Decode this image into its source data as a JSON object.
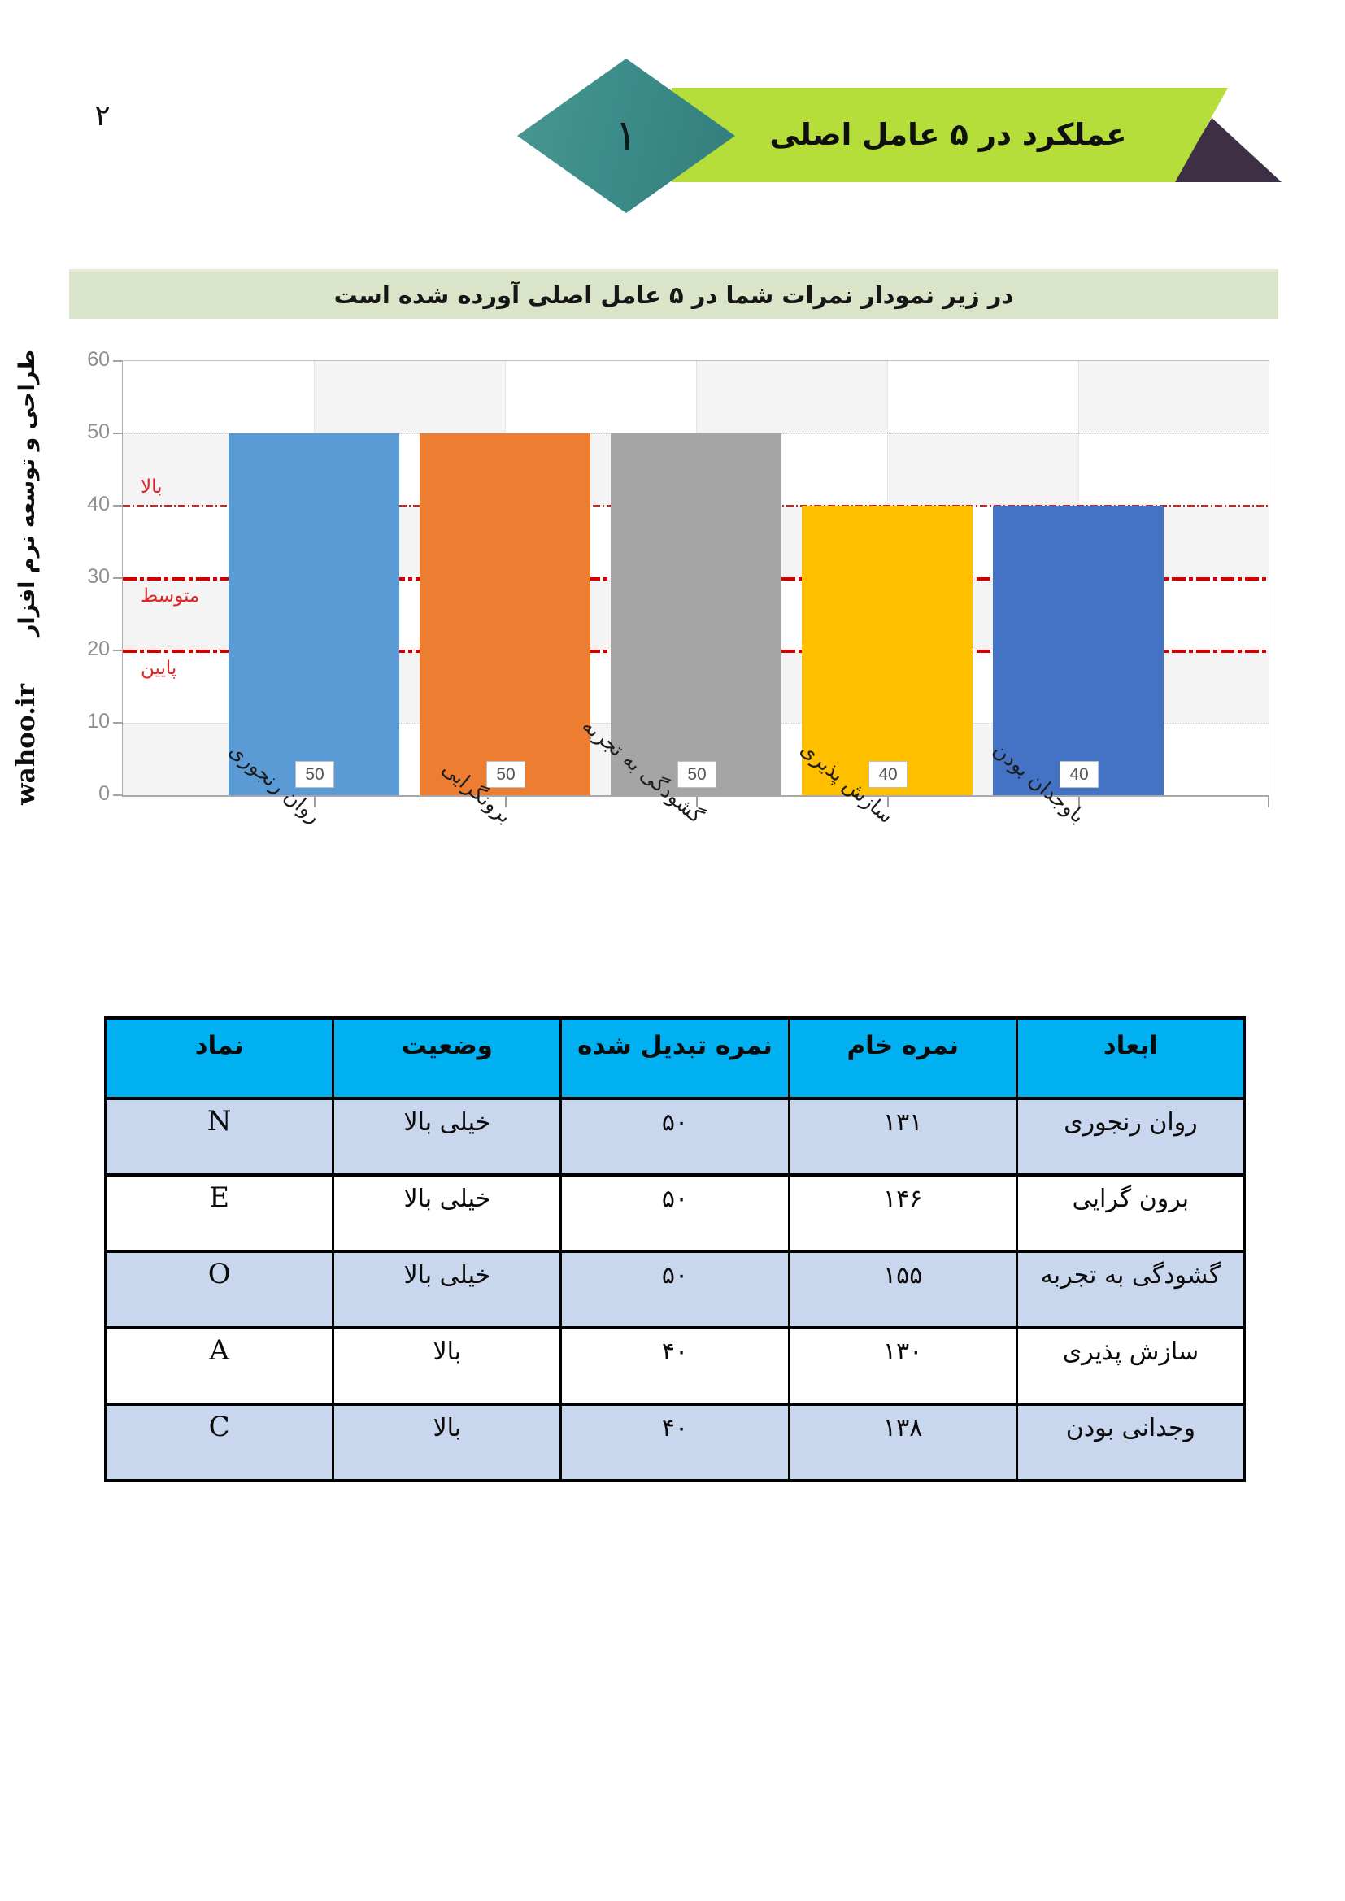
{
  "page_number": "۲",
  "header": {
    "section_number": "۱",
    "title": "عملکرد در ۵ عامل اصلی"
  },
  "subtitle": "در زیر نمودار نمرات شما در ۵ عامل اصلی آورده شده است",
  "branding": {
    "text": "طراحی و توسعه نرم افزار",
    "site": "wahoo.ir"
  },
  "chart_data": {
    "type": "bar",
    "title": "",
    "categories": [
      "روان رنجوری",
      "برونگرایی",
      "گشودگی به تجربه",
      "سازش پذیری",
      "باوجدان بودن"
    ],
    "values": [
      50,
      50,
      50,
      40,
      40
    ],
    "bar_labels": [
      "50",
      "50",
      "50",
      "40",
      "40"
    ],
    "bar_colors": [
      "#5b9bd5",
      "#ed7d31",
      "#a5a5a5",
      "#ffc000",
      "#4472c4"
    ],
    "ylim": [
      0,
      60
    ],
    "yticks": [
      0,
      10,
      20,
      30,
      40,
      50,
      60
    ],
    "grid": true,
    "legend": "none",
    "reference_lines": [
      {
        "value": 40,
        "label": "بالا",
        "label_position": "above",
        "weight": "thin"
      },
      {
        "value": 30,
        "label": "متوسط",
        "label_position": "below",
        "weight": "thick"
      },
      {
        "value": 20,
        "label": "پایین",
        "label_position": "below",
        "weight": "thick"
      }
    ]
  },
  "table": {
    "headers": {
      "dimension": "ابعاد",
      "raw": "نمره خام",
      "converted": "نمره تبدیل شده",
      "status": "وضعیت",
      "symbol": "نماد"
    },
    "rows": [
      {
        "dimension": "روان رنجوری",
        "raw": "۱۳۱",
        "converted": "۵۰",
        "status": "خیلی بالا",
        "symbol": "N"
      },
      {
        "dimension": "برون گرایی",
        "raw": "۱۴۶",
        "converted": "۵۰",
        "status": "خیلی بالا",
        "symbol": "E"
      },
      {
        "dimension": "گشودگی به تجربه",
        "raw": "۱۵۵",
        "converted": "۵۰",
        "status": "خیلی بالا",
        "symbol": "O"
      },
      {
        "dimension": "سازش پذیری",
        "raw": "۱۳۰",
        "converted": "۴۰",
        "status": "بالا",
        "symbol": "A"
      },
      {
        "dimension": "وجدانی بودن",
        "raw": "۱۳۸",
        "converted": "۴۰",
        "status": "بالا",
        "symbol": "C"
      }
    ]
  }
}
